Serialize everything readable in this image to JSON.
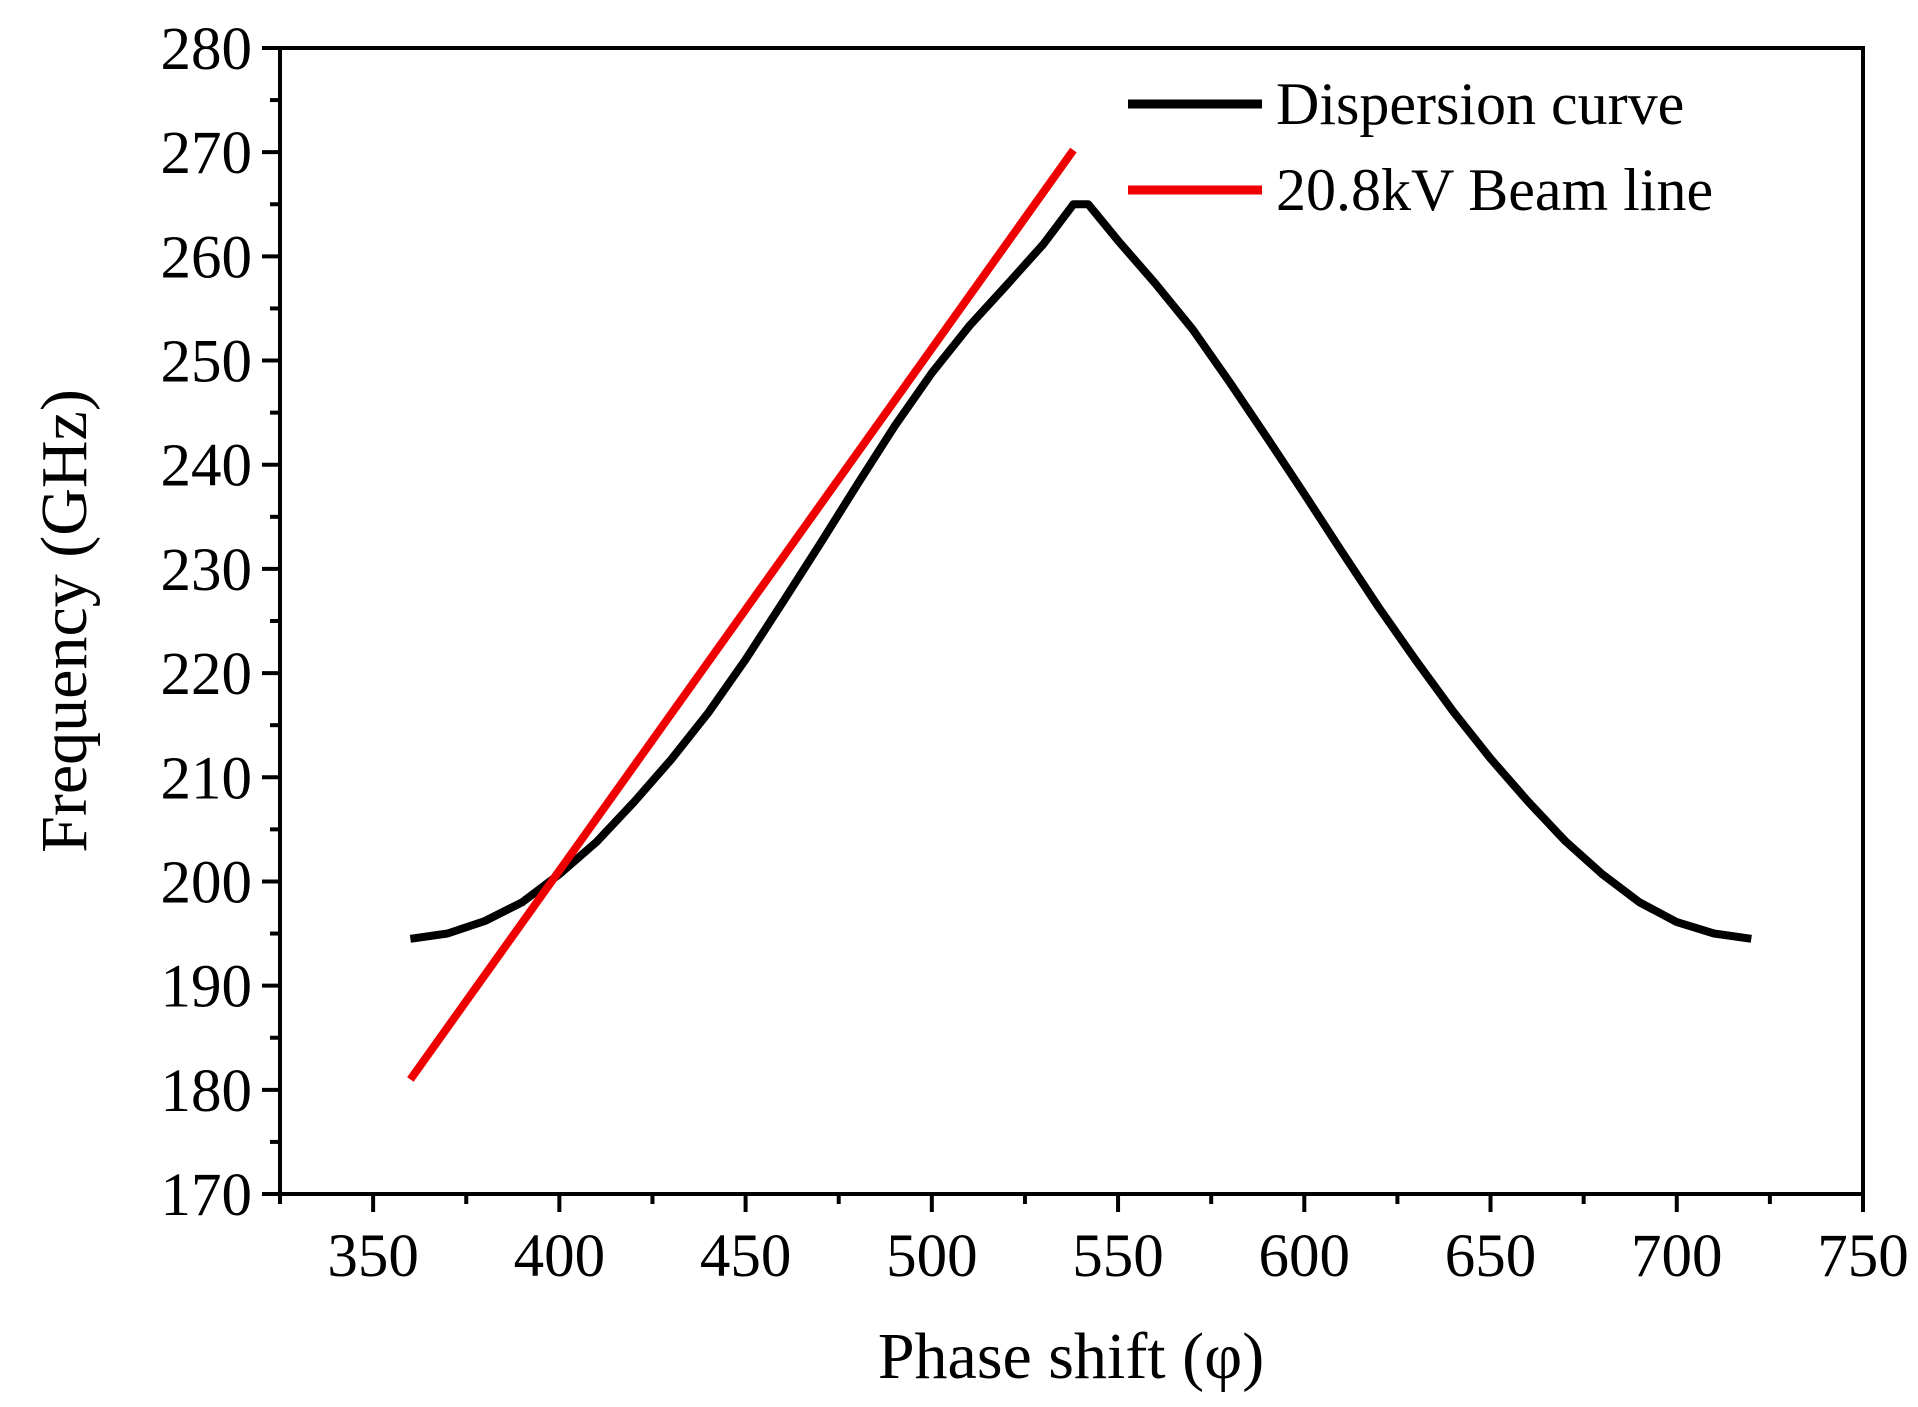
{
  "chart_data": {
    "type": "line",
    "title": "",
    "xlabel": "Phase shift (φ)",
    "ylabel": "Frequency (GHz)",
    "xlim": [
      325,
      750
    ],
    "ylim": [
      170,
      280
    ],
    "xticks": [
      350,
      400,
      450,
      500,
      550,
      600,
      650,
      700,
      750
    ],
    "yticks": [
      170,
      180,
      190,
      200,
      210,
      220,
      230,
      240,
      250,
      260,
      270,
      280
    ],
    "grid": false,
    "legend_position": "top-right",
    "series": [
      {
        "name": "Dispersion curve",
        "color": "#000000",
        "x": [
          360,
          370,
          380,
          390,
          400,
          410,
          420,
          430,
          440,
          450,
          460,
          470,
          480,
          490,
          500,
          510,
          520,
          530,
          538,
          542,
          550,
          560,
          570,
          580,
          590,
          600,
          610,
          620,
          630,
          640,
          650,
          660,
          670,
          680,
          690,
          700,
          710,
          720
        ],
        "y": [
          194.5,
          195.0,
          196.2,
          198.0,
          200.7,
          203.8,
          207.6,
          211.7,
          216.2,
          221.3,
          226.8,
          232.4,
          238.1,
          243.7,
          248.8,
          253.3,
          257.2,
          261.2,
          265.0,
          265.0,
          261.5,
          257.4,
          253.0,
          247.9,
          242.6,
          237.2,
          231.7,
          226.3,
          221.2,
          216.3,
          211.8,
          207.7,
          203.9,
          200.7,
          198.0,
          196.1,
          195.0,
          194.5
        ]
      },
      {
        "name": "20.8kV Beam line",
        "color": "#ee0000",
        "x": [
          360,
          538
        ],
        "y": [
          181.0,
          270.2
        ]
      }
    ]
  }
}
